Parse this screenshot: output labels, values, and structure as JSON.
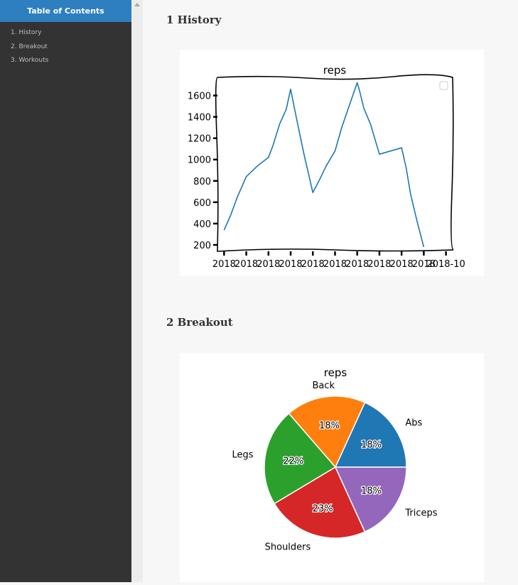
{
  "toc": {
    "title": "Table of Contents",
    "items": [
      {
        "label": "1. History"
      },
      {
        "label": "2. Breakout"
      },
      {
        "label": "3. Workouts"
      }
    ]
  },
  "sections": [
    {
      "title": "1 History"
    },
    {
      "title": "2 Breakout"
    }
  ],
  "chart_data": [
    {
      "type": "line",
      "title": "reps",
      "xlabel": "",
      "ylabel": "",
      "x_tick_labels": [
        "2018",
        "2018",
        "2018",
        "2018",
        "2018",
        "2018",
        "2018",
        "2018",
        "2018",
        "2018",
        "2018-10"
      ],
      "yticks": [
        200,
        400,
        600,
        800,
        1000,
        1200,
        1400,
        1600
      ],
      "ylim": [
        140,
        1770
      ],
      "xlim": [
        -0.3,
        10.3
      ],
      "series": [
        {
          "color": "#1f77b4",
          "x": [
            0,
            0.3,
            0.6,
            1.0,
            1.5,
            2.0,
            2.2,
            2.5,
            2.8,
            3.0,
            3.2,
            3.4,
            3.6,
            4.0,
            4.3,
            4.6,
            5.0,
            5.3,
            5.6,
            6.0,
            6.1,
            6.3,
            6.6,
            7.0,
            7.5,
            8.0,
            8.2,
            8.4,
            8.7,
            9.0
          ],
          "y": [
            340,
            480,
            650,
            840,
            940,
            1020,
            1130,
            1330,
            1470,
            1660,
            1450,
            1250,
            1050,
            690,
            810,
            940,
            1080,
            1300,
            1480,
            1720,
            1650,
            1480,
            1330,
            1050,
            1080,
            1110,
            930,
            680,
            420,
            180
          ]
        }
      ],
      "legend": "top-right",
      "grid": false
    },
    {
      "type": "pie",
      "title": "reps",
      "slices": [
        {
          "label": "Abs",
          "value": 18,
          "color": "#1f77b4"
        },
        {
          "label": "Back",
          "value": 18,
          "color": "#ff7f0e"
        },
        {
          "label": "Legs",
          "value": 22,
          "color": "#2ca02c"
        },
        {
          "label": "Shoulders",
          "value": 23,
          "color": "#d62728"
        },
        {
          "label": "Triceps",
          "value": 18,
          "color": "#9467bd"
        }
      ],
      "pct_labels": [
        "18%",
        "18%",
        "22%",
        "23%",
        "18%"
      ]
    }
  ]
}
